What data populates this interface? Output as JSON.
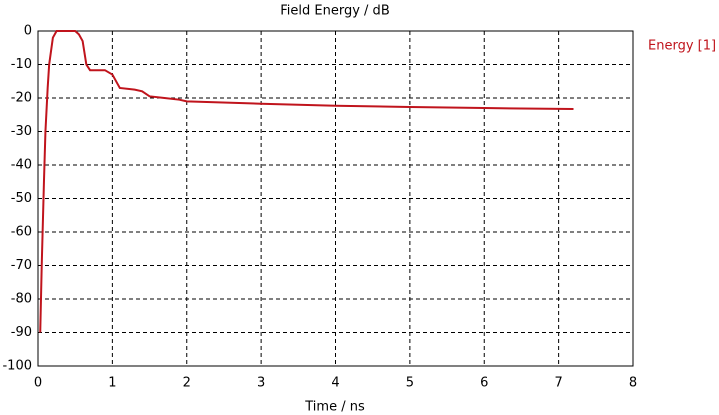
{
  "chart_data": {
    "type": "line",
    "title": "Field Energy / dB",
    "x_label": "Time / ns",
    "x": [
      0.03,
      0.05,
      0.08,
      0.1,
      0.13,
      0.15,
      0.2,
      0.25,
      0.5,
      0.55,
      0.6,
      0.65,
      0.7,
      0.9,
      1.0,
      1.1,
      1.3,
      1.4,
      1.5,
      1.7,
      1.9,
      2.0,
      3.0,
      4.0,
      5.0,
      6.0,
      7.2
    ],
    "series": [
      {
        "name": "Energy [1]",
        "color": "#c0141c",
        "values": [
          -90,
          -70,
          -45,
          -30,
          -17,
          -10,
          -2,
          0,
          0,
          -1,
          -3,
          -10,
          -11.7,
          -11.7,
          -13,
          -17,
          -17.5,
          -18,
          -19.5,
          -20,
          -20.5,
          -21,
          -21.7,
          -22.3,
          -22.7,
          -23,
          -23.3
        ]
      }
    ],
    "xlim": [
      0,
      8
    ],
    "xticks": [
      0,
      1,
      2,
      3,
      4,
      5,
      6,
      7,
      8
    ],
    "ylim": [
      -100,
      0
    ],
    "yticks": [
      0,
      -10,
      -20,
      -30,
      -40,
      -50,
      -60,
      -70,
      -80,
      -90,
      -100
    ],
    "grid": true,
    "legend": "right"
  }
}
